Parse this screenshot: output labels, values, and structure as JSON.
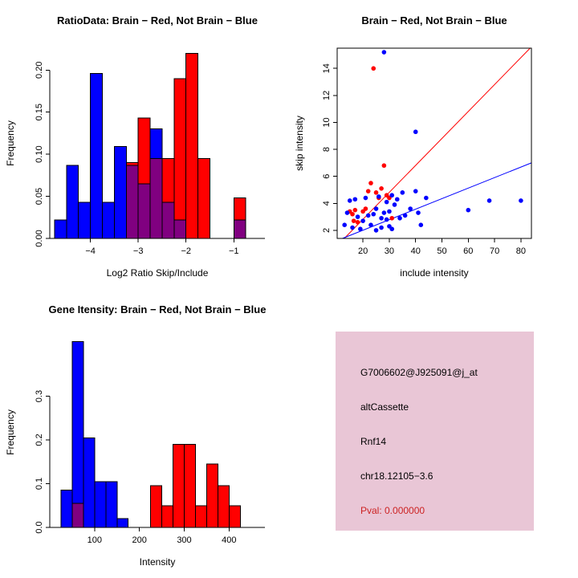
{
  "figure": {
    "background": "#FFFFFF",
    "legend": {
      "brain_label": "Brain",
      "brain_color": "#FF0000",
      "not_brain_label": "Not Brain",
      "not_brain_color": "#0000FF",
      "overlap_color": "#800080"
    }
  },
  "chart_data": [
    {
      "type": "bar",
      "subtype": "overlaid-histogram",
      "title": "RatioData: Brain − Red, Not Brain − Blue",
      "xlabel": "Log2 Ratio Skip/Include",
      "ylabel": "Frequency",
      "xlim": [
        -4.85,
        -0.35
      ],
      "ylim": [
        0,
        0.226
      ],
      "xticks": [
        -4,
        -3,
        -2,
        -1
      ],
      "xtick_labels": [
        "−4",
        "−3",
        "−2",
        "−1"
      ],
      "yticks": [
        0,
        0.05,
        0.1,
        0.15,
        0.2
      ],
      "ytick_labels": [
        "0.00",
        "0.05",
        "0.10",
        "0.15",
        "0.20"
      ],
      "grid": false,
      "bin_width": 0.25,
      "series_names": {
        "red": "Brain",
        "blue": "Not Brain"
      },
      "colors": {
        "blue": "#0000FF",
        "red": "#FF0000",
        "overlap": "#800080"
      },
      "bins": [
        {
          "x0": -4.75,
          "blue": 0.022,
          "red": 0
        },
        {
          "x0": -4.5,
          "blue": 0.087,
          "red": 0
        },
        {
          "x0": -4.25,
          "blue": 0.043,
          "red": 0
        },
        {
          "x0": -4.0,
          "blue": 0.196,
          "red": 0
        },
        {
          "x0": -3.75,
          "blue": 0.043,
          "red": 0
        },
        {
          "x0": -3.5,
          "blue": 0.109,
          "red": 0
        },
        {
          "x0": -3.25,
          "blue": 0.087,
          "red": 0.09
        },
        {
          "x0": -3.0,
          "blue": 0.065,
          "red": 0.143
        },
        {
          "x0": -2.75,
          "blue": 0.13,
          "red": 0.095
        },
        {
          "x0": -2.5,
          "blue": 0.043,
          "red": 0.095
        },
        {
          "x0": -2.25,
          "blue": 0.022,
          "red": 0.19
        },
        {
          "x0": -2.0,
          "blue": 0,
          "red": 0.22
        },
        {
          "x0": -1.75,
          "blue": 0,
          "red": 0.095
        },
        {
          "x0": -1.0,
          "blue": 0.022,
          "red": 0.048
        }
      ]
    },
    {
      "type": "scatter",
      "title": "Brain − Red, Not Brain − Blue",
      "xlabel": "include intensity",
      "ylabel": "skip intensity",
      "xlim": [
        10.2,
        84
      ],
      "ylim": [
        1.4,
        15.5
      ],
      "xticks": [
        20,
        30,
        40,
        50,
        60,
        70,
        80
      ],
      "xtick_labels": [
        "20",
        "30",
        "40",
        "50",
        "60",
        "70",
        "80"
      ],
      "yticks": [
        2,
        4,
        6,
        8,
        10,
        12,
        14
      ],
      "ytick_labels": [
        "2",
        "4",
        "6",
        "8",
        "10",
        "12",
        "14"
      ],
      "grid": false,
      "box": true,
      "series": [
        {
          "name": "Brain",
          "color": "#FF0000",
          "points": [
            [
              15,
              3.4
            ],
            [
              16,
              3.2
            ],
            [
              16.5,
              2.7
            ],
            [
              17,
              3.5
            ],
            [
              18,
              2.6
            ],
            [
              20,
              3.4
            ],
            [
              21,
              3.6
            ],
            [
              22,
              4.9
            ],
            [
              23,
              5.5
            ],
            [
              24,
              14.0
            ],
            [
              25,
              4.8
            ],
            [
              26,
              4.4
            ],
            [
              27,
              5.1
            ],
            [
              28,
              6.8
            ],
            [
              29,
              4.6
            ],
            [
              30,
              4.4
            ],
            [
              31,
              2.9
            ]
          ]
        },
        {
          "name": "Not Brain",
          "color": "#0000FF",
          "points": [
            [
              13,
              2.4
            ],
            [
              14,
              3.3
            ],
            [
              15,
              4.2
            ],
            [
              16,
              2.2
            ],
            [
              17,
              4.3
            ],
            [
              18,
              3.0
            ],
            [
              19,
              2.1
            ],
            [
              20,
              2.7
            ],
            [
              21,
              4.4
            ],
            [
              22,
              3.1
            ],
            [
              23,
              2.4
            ],
            [
              24,
              3.2
            ],
            [
              25,
              2.0
            ],
            [
              25,
              3.6
            ],
            [
              26,
              4.5
            ],
            [
              27,
              2.9
            ],
            [
              27,
              2.2
            ],
            [
              28,
              15.2
            ],
            [
              28,
              3.3
            ],
            [
              29,
              2.8
            ],
            [
              29,
              4.1
            ],
            [
              30,
              2.3
            ],
            [
              30,
              3.4
            ],
            [
              31,
              4.6
            ],
            [
              31,
              2.1
            ],
            [
              32,
              3.9
            ],
            [
              33,
              4.3
            ],
            [
              34,
              2.9
            ],
            [
              35,
              4.8
            ],
            [
              36,
              3.1
            ],
            [
              38,
              3.6
            ],
            [
              40,
              9.3
            ],
            [
              40,
              4.9
            ],
            [
              41,
              3.3
            ],
            [
              42,
              2.4
            ],
            [
              44,
              4.4
            ],
            [
              60,
              3.5
            ],
            [
              68,
              4.2
            ],
            [
              80,
              4.2
            ]
          ]
        }
      ],
      "lines": [
        {
          "name": "brain-fit",
          "color": "#FF0000",
          "x": [
            12.9,
            83.5
          ],
          "y": [
            1.4,
            15.5
          ]
        },
        {
          "name": "not-brain-fit",
          "color": "#0000FF",
          "x": [
            12.2,
            84
          ],
          "y": [
            1.4,
            7.0
          ]
        }
      ]
    },
    {
      "type": "bar",
      "subtype": "overlaid-histogram",
      "title": "Gene Itensity: Brain − Red, Not Brain − Blue",
      "xlabel": "Intensity",
      "ylabel": "Frequency",
      "xlim": [
        0,
        480
      ],
      "ylim": [
        0,
        0.435
      ],
      "xticks": [
        100,
        200,
        300,
        400
      ],
      "xtick_labels": [
        "100",
        "200",
        "300",
        "400"
      ],
      "yticks": [
        0,
        0.1,
        0.2,
        0.3
      ],
      "ytick_labels": [
        "0.0",
        "0.1",
        "0.2",
        "0.3"
      ],
      "grid": false,
      "bin_width": 25,
      "series_names": {
        "red": "Brain",
        "blue": "Not Brain"
      },
      "colors": {
        "blue": "#0000FF",
        "red": "#FF0000",
        "overlap": "#800080"
      },
      "bins": [
        {
          "x0": 25,
          "blue": 0.085,
          "red": 0
        },
        {
          "x0": 50,
          "blue": 0.425,
          "red": 0.055
        },
        {
          "x0": 75,
          "blue": 0.205,
          "red": 0
        },
        {
          "x0": 100,
          "blue": 0.105,
          "red": 0
        },
        {
          "x0": 125,
          "blue": 0.105,
          "red": 0
        },
        {
          "x0": 150,
          "blue": 0.02,
          "red": 0
        },
        {
          "x0": 225,
          "blue": 0,
          "red": 0.095
        },
        {
          "x0": 250,
          "blue": 0,
          "red": 0.05
        },
        {
          "x0": 275,
          "blue": 0,
          "red": 0.19
        },
        {
          "x0": 300,
          "blue": 0,
          "red": 0.19
        },
        {
          "x0": 325,
          "blue": 0,
          "red": 0.05
        },
        {
          "x0": 350,
          "blue": 0,
          "red": 0.145
        },
        {
          "x0": 375,
          "blue": 0,
          "red": 0.095
        },
        {
          "x0": 400,
          "blue": 0,
          "red": 0.05
        }
      ]
    }
  ],
  "info_box": {
    "background": "#E9C6D6",
    "lines": [
      {
        "text": "G7006602@J925091@j_at",
        "color": "#000000"
      },
      {
        "text": "altCassette",
        "color": "#000000"
      },
      {
        "text": "Rnf14",
        "color": "#000000"
      },
      {
        "text": "chr18.12105−3.6",
        "color": "#000000"
      },
      {
        "text": "Pval: 0.000000",
        "color": "#CC2222"
      }
    ]
  }
}
